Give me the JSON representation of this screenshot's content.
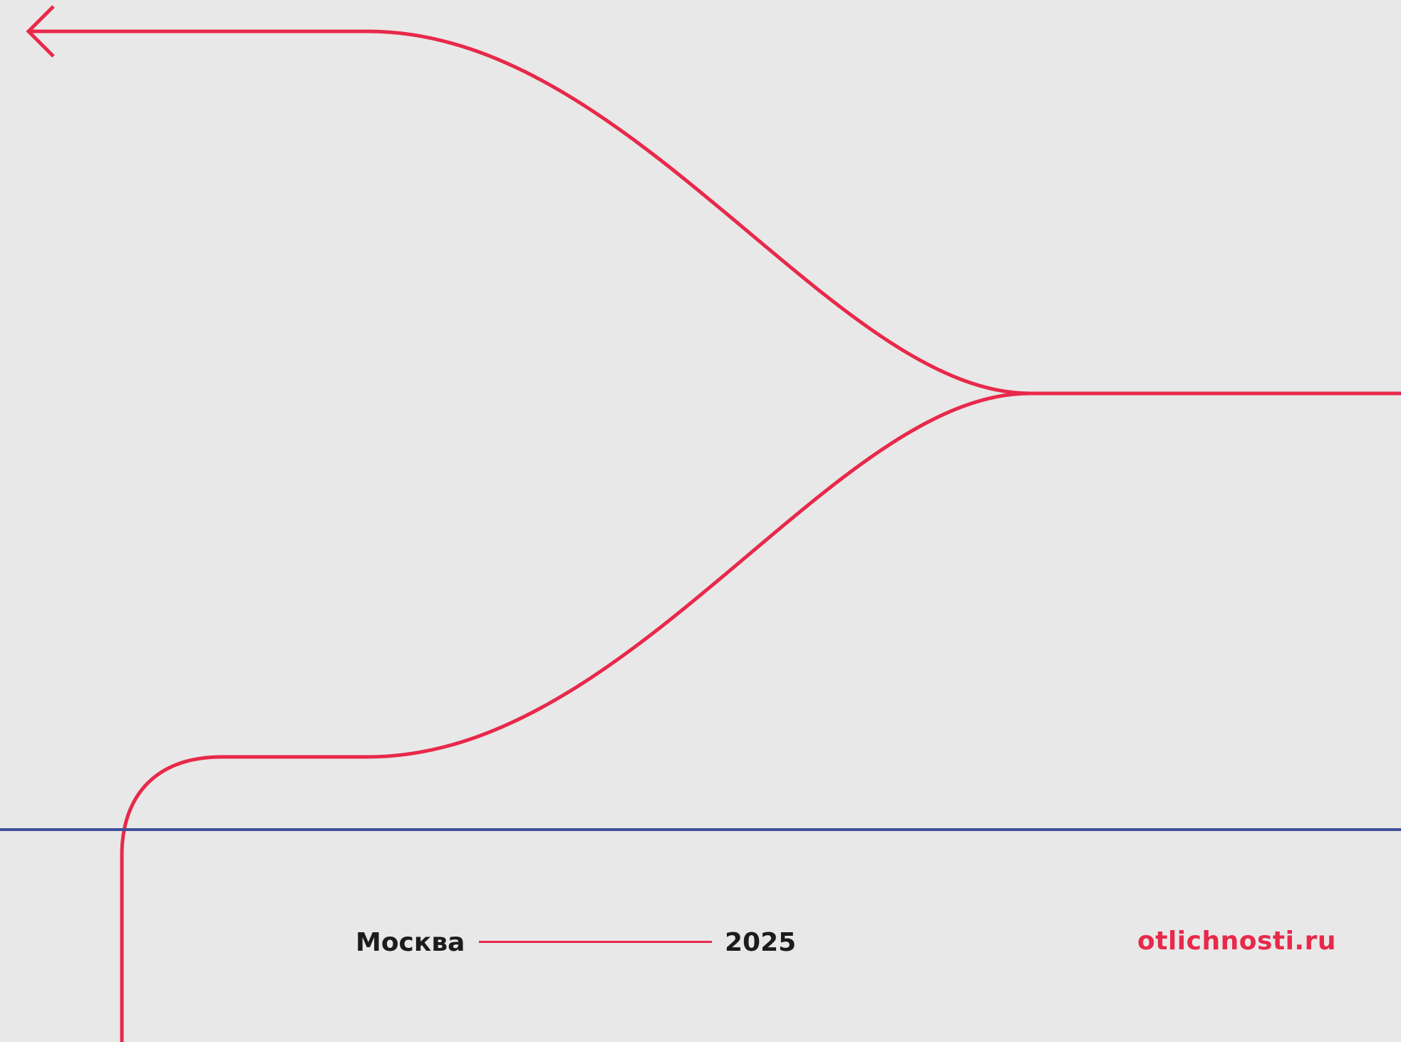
{
  "footer": {
    "city": "Москва",
    "year": "2025",
    "website": "otlichnosti.ru"
  },
  "colors": {
    "background": "#e8e8e8",
    "accent_red": "#e8294a",
    "divider_blue": "#3f4f9a",
    "text_dark": "#1c1c1c"
  },
  "icons": [
    "arrow-left-icon"
  ]
}
